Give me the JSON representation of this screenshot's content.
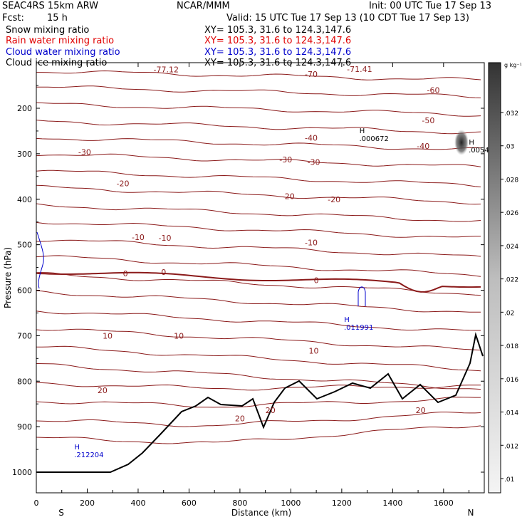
{
  "header": {
    "model": "SEAC4RS 15km ARW",
    "org": "NCAR/MMM",
    "init": "Init: 00 UTC Tue 17 Sep 13",
    "fcst_label": "Fcst:",
    "fcst_value": "15 h",
    "valid": "Valid: 15 UTC Tue 17 Sep 13 (10 CDT Tue 17 Sep 13)",
    "fields": [
      {
        "name": "Snow mixing ratio",
        "xy": "XY= 105.3, 31.6 to 124.3,147.6",
        "color": "#000000"
      },
      {
        "name": "Rain water mixing ratio",
        "xy": "XY= 105.3, 31.6 to 124.3,147.6",
        "color": "#e00000"
      },
      {
        "name": "Cloud water mixing ratio",
        "xy": "XY= 105.3, 31.6 to 124.3,147.6",
        "color": "#0000cc"
      },
      {
        "name": "Cloud ice mixing ratio",
        "xy": "XY= 105.3, 31.6 to 124.3,147.6",
        "color": "#000000"
      }
    ]
  },
  "chart_data": {
    "type": "cross-section",
    "xlabel": "Distance (km)",
    "ylabel": "Pressure (hPa)",
    "x_ticks": [
      "0",
      "200",
      "400",
      "600",
      "800",
      "1000",
      "1200",
      "1400",
      "1600"
    ],
    "y_ticks": [
      "200",
      "300",
      "400",
      "500",
      "600",
      "700",
      "800",
      "900",
      "1000"
    ],
    "xlim": [
      0,
      1760
    ],
    "ylim": [
      1050,
      100
    ],
    "x_end_labels": {
      "left": "S",
      "right": "N"
    },
    "colorbar": {
      "unit": "g kg⁻¹",
      "ticks": [
        ".032",
        ".03",
        ".028",
        ".026",
        ".024",
        ".022",
        ".02",
        ".018",
        ".016",
        ".014",
        ".012",
        ".01"
      ]
    },
    "contour_labels": [
      {
        "text": "-77.12",
        "x": 510,
        "y": 115
      },
      {
        "text": "-71.41",
        "x": 1270,
        "y": 114
      },
      {
        "text": "-70",
        "x": 1080,
        "y": 125
      },
      {
        "text": "-60",
        "x": 1560,
        "y": 160
      },
      {
        "text": "-50",
        "x": 1540,
        "y": 227
      },
      {
        "text": "-40",
        "x": 1080,
        "y": 265
      },
      {
        "text": "-40",
        "x": 1520,
        "y": 283
      },
      {
        "text": "-30",
        "x": 190,
        "y": 296
      },
      {
        "text": "-30",
        "x": 980,
        "y": 313
      },
      {
        "text": "-30",
        "x": 1090,
        "y": 318
      },
      {
        "text": "-20",
        "x": 340,
        "y": 365
      },
      {
        "text": "-20",
        "x": 990,
        "y": 393
      },
      {
        "text": "-20",
        "x": 1170,
        "y": 400
      },
      {
        "text": "-10",
        "x": 400,
        "y": 483
      },
      {
        "text": "-10",
        "x": 505,
        "y": 485
      },
      {
        "text": "-10",
        "x": 1080,
        "y": 495
      },
      {
        "text": "0",
        "x": 350,
        "y": 563
      },
      {
        "text": "0",
        "x": 500,
        "y": 560
      },
      {
        "text": "0",
        "x": 1100,
        "y": 578
      },
      {
        "text": "10",
        "x": 280,
        "y": 700
      },
      {
        "text": "10",
        "x": 560,
        "y": 700
      },
      {
        "text": "10",
        "x": 1090,
        "y": 733
      },
      {
        "text": "20",
        "x": 260,
        "y": 820
      },
      {
        "text": "20",
        "x": 800,
        "y": 882
      },
      {
        "text": "20",
        "x": 920,
        "y": 864
      },
      {
        "text": "20",
        "x": 1510,
        "y": 864
      }
    ],
    "extrema": [
      {
        "mark": "H",
        "value": ".000672",
        "x": 1280,
        "y": 255,
        "color": "#000000"
      },
      {
        "mark": "H",
        "value": ".0054",
        "x": 1710,
        "y": 280,
        "color": "#000000"
      },
      {
        "mark": "H",
        "value": ".011991",
        "x": 1220,
        "y": 670,
        "color": "#0000cc"
      },
      {
        "mark": "H",
        "value": ".212204",
        "x": 160,
        "y": 950,
        "color": "#0000cc"
      }
    ]
  }
}
